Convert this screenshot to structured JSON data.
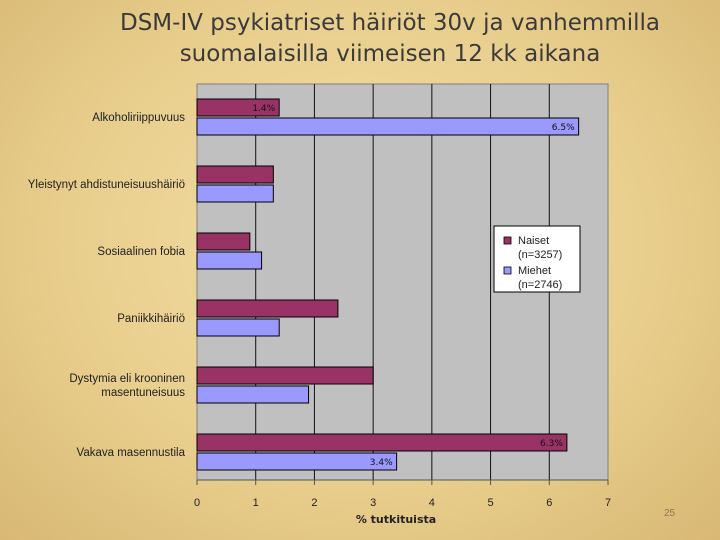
{
  "slide": {
    "title_line1": "DSM-IV psykiatriset häiriöt 30v ja vanhemmilla",
    "title_line2": "suomalaisilla viimeisen 12 kk aikana",
    "page_number": "25"
  },
  "chart_data": {
    "type": "bar",
    "orientation": "horizontal",
    "categories": [
      [
        "Alkoholiriippuvuus"
      ],
      [
        "Yleistynyt ahdistuneisuushäiriö"
      ],
      [
        "Sosiaalinen fobia"
      ],
      [
        "Paniikkihäiriö"
      ],
      [
        "Dystymia eli krooninen",
        "masentuneisuus"
      ],
      [
        "Vakava masennustila"
      ]
    ],
    "series": [
      {
        "name": "Naiset",
        "name_note": "(n=3257)",
        "color": "#993366",
        "values": [
          1.4,
          1.3,
          0.9,
          2.4,
          3.0,
          6.3
        ]
      },
      {
        "name": "Miehet",
        "name_note": "(n=2746)",
        "color": "#9999ff",
        "values": [
          6.5,
          1.3,
          1.1,
          1.4,
          1.9,
          3.4
        ]
      }
    ],
    "data_labels": [
      {
        "series": 0,
        "category": 0,
        "text": "1.4%"
      },
      {
        "series": 1,
        "category": 0,
        "text": "6.5%"
      },
      {
        "series": 0,
        "category": 5,
        "text": "6.3%"
      },
      {
        "series": 1,
        "category": 5,
        "text": "3.4%"
      }
    ],
    "xlabel": "% tutkituista",
    "ylabel": "",
    "xlim": [
      0,
      7
    ],
    "xticks": [
      0,
      1,
      2,
      3,
      4,
      5,
      6,
      7
    ],
    "grid": true,
    "legend_position": "right-middle"
  }
}
